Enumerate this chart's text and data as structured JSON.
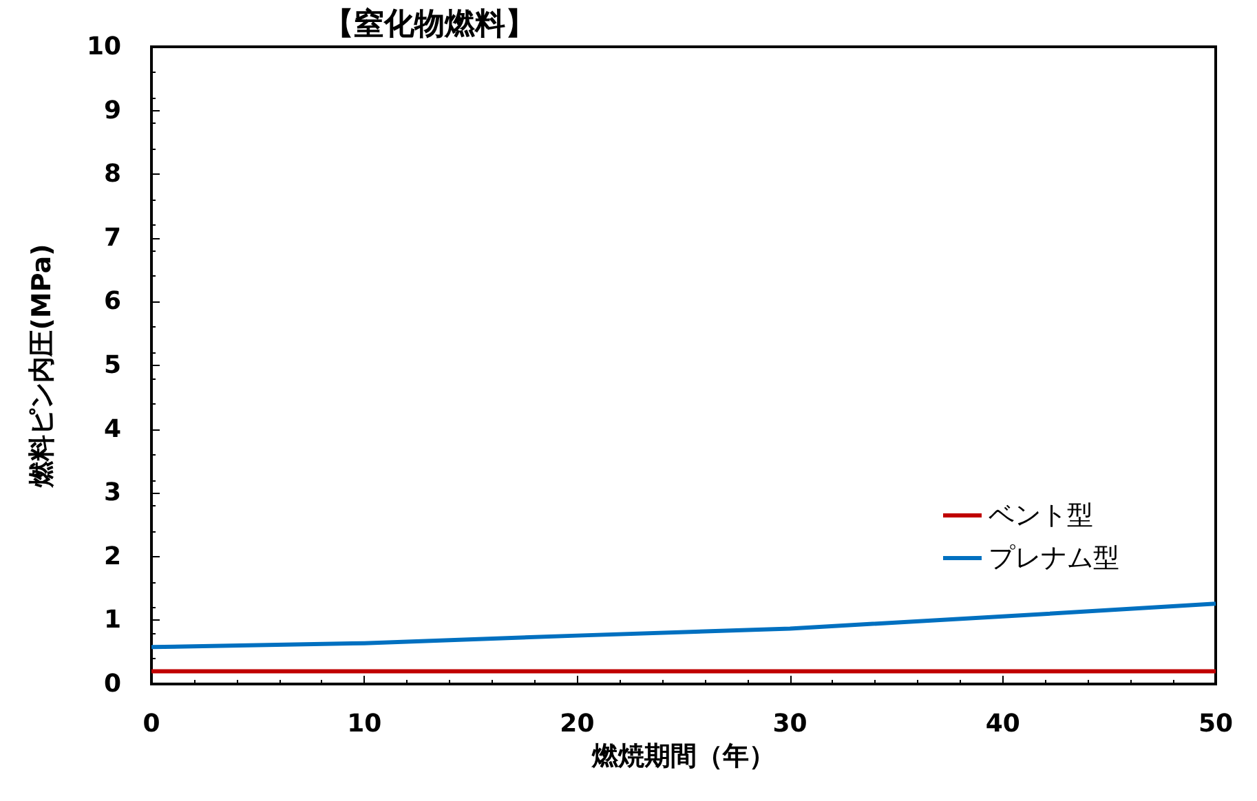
{
  "chart_data": {
    "type": "line",
    "title": "【窒化物燃料】",
    "xlabel": "燃焼期間（年）",
    "ylabel": "燃料ピン内圧(MPa)",
    "x": [
      0,
      10,
      20,
      30,
      40,
      50
    ],
    "series": [
      {
        "name": "ベント型",
        "color": "#c00000",
        "values": [
          0.2,
          0.2,
          0.2,
          0.2,
          0.2,
          0.2
        ]
      },
      {
        "name": "プレナム型",
        "color": "#0070c0",
        "values": [
          0.58,
          0.64,
          0.76,
          0.87,
          1.06,
          1.26
        ]
      }
    ],
    "xlim": [
      0,
      50
    ],
    "xticks": [
      0,
      10,
      20,
      30,
      40,
      50
    ],
    "ylim": [
      0,
      10
    ],
    "yticks": [
      0,
      1,
      2,
      3,
      4,
      5,
      6,
      7,
      8,
      9,
      10
    ],
    "grid": false,
    "legend": "right",
    "marker": "none",
    "line_style": "solid"
  }
}
